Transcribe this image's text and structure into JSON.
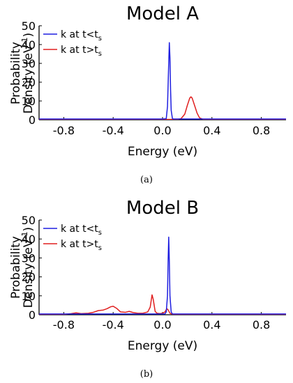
{
  "chart_data": [
    {
      "type": "line",
      "title": "Model A",
      "xlabel": "Energy (eV)",
      "ylabel": {
        "line1": "Probability",
        "line2_main": "Density (eV",
        "line2_sup": "-1",
        "line2_end": ")"
      },
      "xlim": [
        -1.0,
        1.0
      ],
      "ylim": [
        0,
        50
      ],
      "xticks": [
        -0.8,
        -0.4,
        0.0,
        0.4,
        0.8
      ],
      "xtick_labels": [
        "-0.8",
        "-0.4",
        "0.0",
        "0.4",
        "0.8"
      ],
      "yticks": [
        0,
        10,
        20,
        30,
        40,
        50
      ],
      "ytick_labels": [
        "0",
        "10",
        "20",
        "30",
        "40",
        "50"
      ],
      "legend_position": "top-left",
      "caption": "(a)",
      "series": [
        {
          "name": "k at t<t_s",
          "legend": {
            "main": "k at t<t",
            "sub": "s"
          },
          "color": "#1f1fe0",
          "x": [
            -1.0,
            0.0,
            0.03,
            0.04,
            0.05,
            0.055,
            0.06,
            0.065,
            0.07,
            0.08,
            0.09,
            1.0
          ],
          "y": [
            0.4,
            0.4,
            0.6,
            7,
            30,
            41,
            33,
            16,
            5,
            0.6,
            0.4,
            0.4
          ]
        },
        {
          "name": "k at t>t_s",
          "legend": {
            "main": "k at t>t",
            "sub": "s"
          },
          "color": "#e01f1f",
          "x": [
            -1.0,
            0.12,
            0.15,
            0.18,
            0.2,
            0.22,
            0.23,
            0.24,
            0.26,
            0.28,
            0.3,
            0.33,
            1.0
          ],
          "y": [
            0.2,
            0.2,
            0.6,
            3,
            7.5,
            11.5,
            12.2,
            11.5,
            7.5,
            3.5,
            1.0,
            0.2,
            0.2
          ]
        }
      ]
    },
    {
      "type": "line",
      "title": "Model B",
      "xlabel": "Energy (eV)",
      "ylabel": {
        "line1": "Probability",
        "line2_main": "Density (eV",
        "line2_sup": "-1",
        "line2_end": ")"
      },
      "xlim": [
        -1.0,
        1.0
      ],
      "ylim": [
        0,
        50
      ],
      "xticks": [
        -0.8,
        -0.4,
        0.0,
        0.4,
        0.8
      ],
      "xtick_labels": [
        "-0.8",
        "-0.4",
        "0.0",
        "0.4",
        "0.8"
      ],
      "yticks": [
        0,
        10,
        20,
        30,
        40,
        50
      ],
      "ytick_labels": [
        "0",
        "10",
        "20",
        "30",
        "40",
        "50"
      ],
      "legend_position": "top-left",
      "caption": "(b)",
      "series": [
        {
          "name": "k at t<t_s",
          "legend": {
            "main": "k at t<t",
            "sub": "s"
          },
          "color": "#1f1fe0",
          "x": [
            -1.0,
            0.02,
            0.03,
            0.04,
            0.045,
            0.05,
            0.055,
            0.06,
            0.07,
            0.08,
            1.0
          ],
          "y": [
            0.4,
            0.4,
            1.5,
            10,
            28,
            41,
            28,
            10,
            1.5,
            0.4,
            0.4
          ]
        },
        {
          "name": "k at t>t_s",
          "legend": {
            "main": "k at t>t",
            "sub": "s"
          },
          "color": "#e01f1f",
          "x": [
            -1.0,
            -0.8,
            -0.74,
            -0.7,
            -0.66,
            -0.6,
            -0.56,
            -0.52,
            -0.48,
            -0.45,
            -0.42,
            -0.4,
            -0.37,
            -0.34,
            -0.3,
            -0.27,
            -0.24,
            -0.2,
            -0.16,
            -0.12,
            -0.1,
            -0.085,
            -0.075,
            -0.06,
            -0.045,
            -0.02,
            0.0,
            0.02,
            0.035,
            0.045,
            0.06,
            0.08,
            0.1,
            1.0
          ],
          "y": [
            0.2,
            0.2,
            0.6,
            1.0,
            0.6,
            0.8,
            1.3,
            2.2,
            2.5,
            3.2,
            4.2,
            4.5,
            3.3,
            1.5,
            1.3,
            1.8,
            1.2,
            0.8,
            0.8,
            1.5,
            4,
            10.5,
            8,
            1.8,
            0.8,
            0.6,
            0.8,
            1.5,
            3.2,
            2.6,
            0.8,
            0.3,
            0.2,
            0.2
          ]
        }
      ]
    }
  ]
}
